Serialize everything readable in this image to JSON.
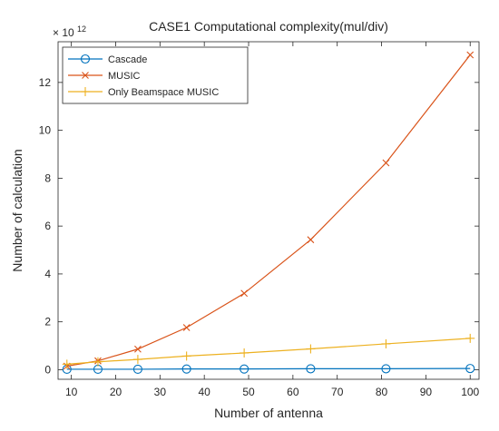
{
  "chart_data": {
    "type": "line",
    "title": "CASE1 Computational complexity(mul/div)",
    "xlabel": "Number of antenna",
    "ylabel": "Number of calculation",
    "y_exponent_label": "× 10",
    "y_exponent_power": "12",
    "xlim": [
      7,
      102
    ],
    "ylim": [
      -0.4,
      13.7
    ],
    "x_ticks": [
      10,
      20,
      30,
      40,
      50,
      60,
      70,
      80,
      90,
      100
    ],
    "y_ticks": [
      0,
      2,
      4,
      6,
      8,
      10,
      12
    ],
    "grid": false,
    "legend_position": "top-left",
    "x": [
      9,
      16,
      25,
      36,
      49,
      64,
      81,
      100
    ],
    "series": [
      {
        "name": "Cascade",
        "color": "#0072BD",
        "marker": "circle",
        "values": [
          0.02,
          0.02,
          0.02,
          0.03,
          0.03,
          0.04,
          0.04,
          0.05
        ]
      },
      {
        "name": "MUSIC",
        "color": "#D95319",
        "marker": "x",
        "values": [
          0.15,
          0.37,
          0.86,
          1.76,
          3.19,
          5.43,
          8.64,
          13.15
        ]
      },
      {
        "name": "Only Beamspace MUSIC",
        "color": "#EDB120",
        "marker": "plus",
        "values": [
          0.23,
          0.33,
          0.43,
          0.57,
          0.7,
          0.87,
          1.08,
          1.31
        ]
      }
    ]
  }
}
